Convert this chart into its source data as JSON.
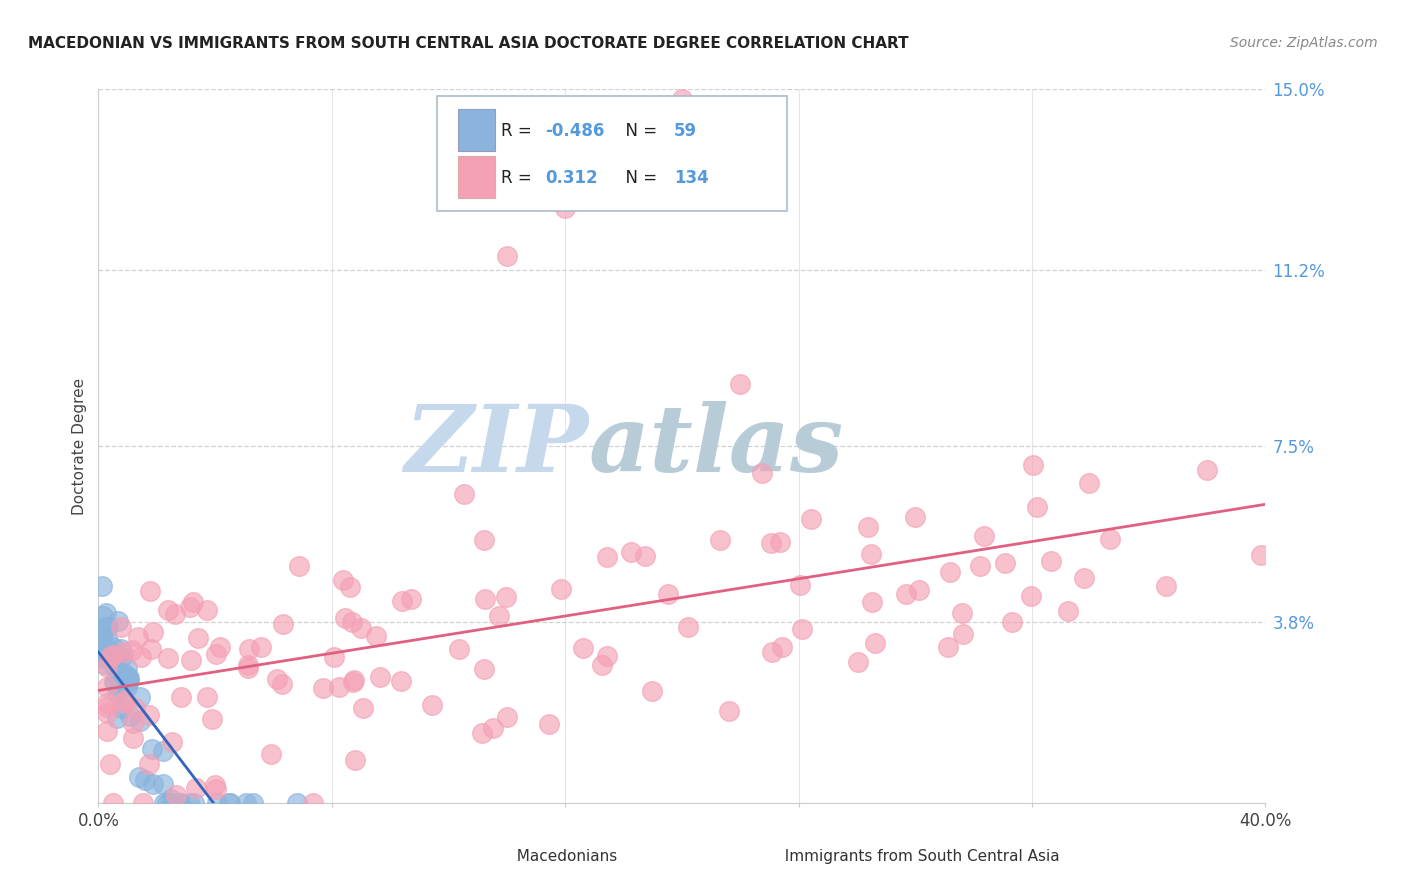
{
  "title": "MACEDONIAN VS IMMIGRANTS FROM SOUTH CENTRAL ASIA DOCTORATE DEGREE CORRELATION CHART",
  "source": "Source: ZipAtlas.com",
  "ylabel": "Doctorate Degree",
  "xlim": [
    0.0,
    0.4
  ],
  "ylim": [
    0.0,
    0.15
  ],
  "ytick_positions": [
    0.0,
    0.038,
    0.075,
    0.112,
    0.15
  ],
  "ytick_labels": [
    "",
    "3.8%",
    "7.5%",
    "11.2%",
    "15.0%"
  ],
  "blue_R": -0.486,
  "blue_N": 59,
  "pink_R": 0.312,
  "pink_N": 134,
  "blue_color": "#8ab4dc",
  "pink_color": "#f4a0b5",
  "blue_line_color": "#3366bb",
  "pink_line_color": "#e06080",
  "background_color": "#ffffff",
  "grid_color": "#cccccc",
  "watermark_zip": "ZIP",
  "watermark_atlas": "atlas",
  "watermark_color_zip": "#c8d8ea",
  "watermark_color_atlas": "#b8c8dc",
  "legend_label_blue": "Macedonians",
  "legend_label_pink": "Immigrants from South Central Asia"
}
